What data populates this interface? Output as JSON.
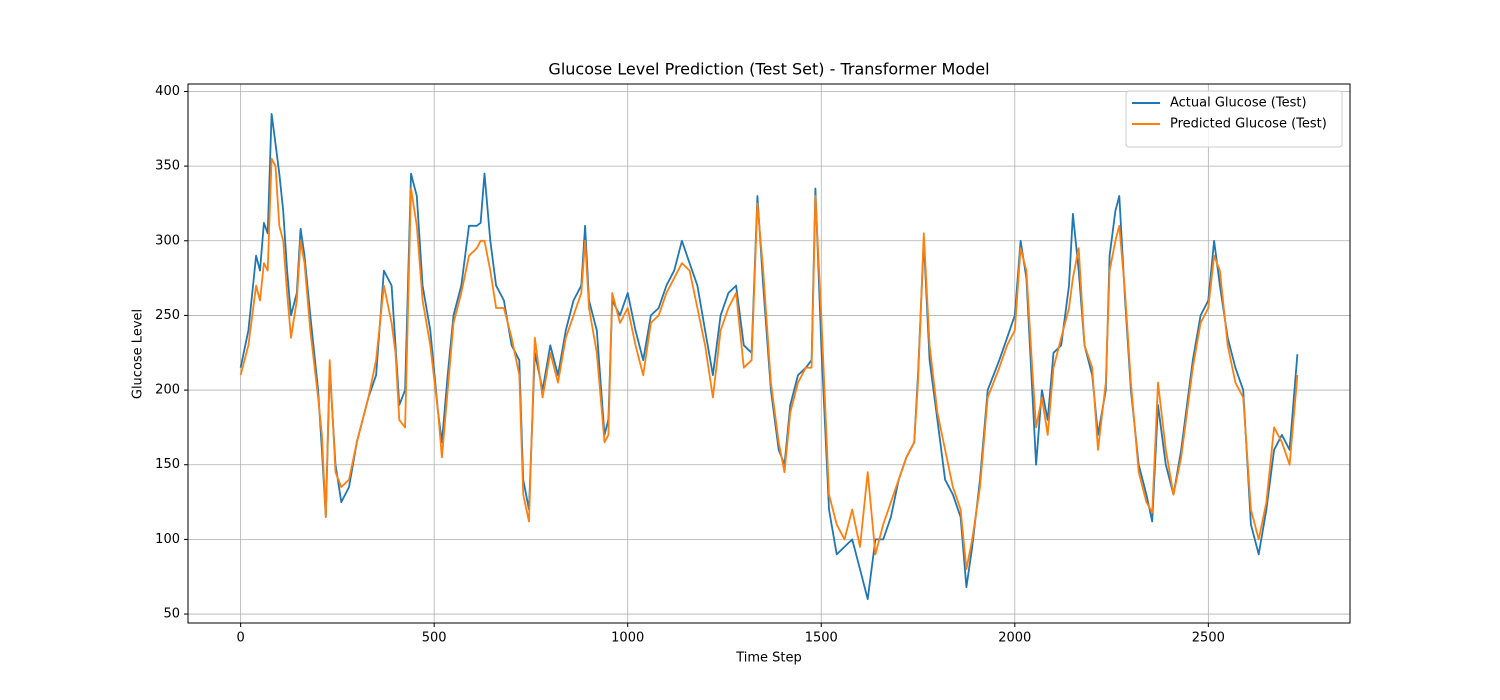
{
  "chart_data": {
    "type": "line",
    "title": "Glucose Level Prediction (Test Set) - Transformer Model",
    "x_label": "Time Step",
    "y_label": "Glucose Level",
    "x": [
      0,
      20,
      40,
      50,
      60,
      70,
      80,
      90,
      100,
      110,
      120,
      130,
      145,
      155,
      165,
      180,
      200,
      210,
      220,
      230,
      245,
      260,
      280,
      300,
      330,
      350,
      370,
      390,
      400,
      410,
      425,
      440,
      455,
      470,
      490,
      510,
      520,
      535,
      550,
      570,
      590,
      610,
      620,
      630,
      645,
      660,
      680,
      700,
      720,
      730,
      745,
      760,
      780,
      800,
      820,
      840,
      860,
      880,
      890,
      900,
      920,
      940,
      950,
      960,
      980,
      1000,
      1020,
      1040,
      1060,
      1080,
      1100,
      1120,
      1140,
      1160,
      1180,
      1200,
      1220,
      1240,
      1260,
      1280,
      1300,
      1320,
      1335,
      1350,
      1370,
      1390,
      1405,
      1420,
      1440,
      1460,
      1475,
      1485,
      1500,
      1520,
      1540,
      1560,
      1580,
      1600,
      1620,
      1640,
      1660,
      1680,
      1700,
      1720,
      1740,
      1750,
      1765,
      1780,
      1800,
      1820,
      1840,
      1860,
      1875,
      1890,
      1910,
      1930,
      1960,
      1980,
      2000,
      2015,
      2030,
      2045,
      2055,
      2070,
      2085,
      2100,
      2120,
      2140,
      2150,
      2165,
      2180,
      2200,
      2215,
      2235,
      2245,
      2260,
      2270,
      2285,
      2300,
      2320,
      2340,
      2355,
      2370,
      2390,
      2410,
      2430,
      2460,
      2480,
      2500,
      2515,
      2530,
      2550,
      2570,
      2590,
      2610,
      2630,
      2650,
      2670,
      2690,
      2710,
      2730
    ],
    "series": [
      {
        "name": "Actual Glucose (Test)",
        "color": "#1f77b4",
        "values": [
          215,
          240,
          290,
          280,
          312,
          305,
          385,
          365,
          345,
          320,
          280,
          250,
          265,
          308,
          290,
          250,
          200,
          160,
          115,
          215,
          150,
          125,
          135,
          165,
          195,
          210,
          280,
          270,
          230,
          190,
          200,
          345,
          330,
          270,
          240,
          185,
          165,
          210,
          250,
          270,
          310,
          310,
          312,
          345,
          300,
          270,
          260,
          230,
          220,
          140,
          120,
          225,
          200,
          230,
          210,
          240,
          260,
          270,
          310,
          260,
          240,
          170,
          180,
          260,
          250,
          265,
          240,
          220,
          250,
          255,
          270,
          280,
          300,
          285,
          270,
          240,
          210,
          250,
          265,
          270,
          230,
          225,
          330,
          270,
          200,
          160,
          150,
          190,
          210,
          215,
          220,
          335,
          230,
          120,
          90,
          95,
          100,
          80,
          60,
          100,
          100,
          115,
          140,
          155,
          165,
          210,
          300,
          220,
          180,
          140,
          130,
          115,
          68,
          95,
          140,
          200,
          220,
          235,
          250,
          300,
          275,
          200,
          150,
          200,
          180,
          225,
          230,
          270,
          318,
          280,
          230,
          210,
          170,
          200,
          290,
          320,
          330,
          260,
          200,
          150,
          130,
          112,
          190,
          150,
          130,
          160,
          220,
          250,
          260,
          300,
          270,
          235,
          215,
          200,
          110,
          90,
          120,
          160,
          170,
          160,
          224
        ]
      },
      {
        "name": "Predicted Glucose (Test)",
        "color": "#ff7f0e",
        "values": [
          210,
          230,
          270,
          260,
          285,
          280,
          355,
          350,
          310,
          300,
          265,
          235,
          260,
          300,
          285,
          240,
          195,
          170,
          115,
          220,
          145,
          135,
          140,
          165,
          195,
          220,
          270,
          245,
          225,
          180,
          175,
          335,
          310,
          260,
          230,
          185,
          155,
          200,
          245,
          265,
          290,
          295,
          300,
          300,
          280,
          255,
          255,
          235,
          210,
          130,
          112,
          235,
          195,
          225,
          205,
          235,
          250,
          265,
          300,
          255,
          225,
          165,
          170,
          265,
          245,
          255,
          230,
          210,
          245,
          250,
          265,
          275,
          285,
          280,
          255,
          230,
          195,
          240,
          255,
          265,
          215,
          220,
          325,
          280,
          205,
          165,
          145,
          185,
          205,
          215,
          215,
          330,
          250,
          130,
          110,
          100,
          120,
          95,
          145,
          90,
          110,
          125,
          140,
          155,
          165,
          205,
          305,
          230,
          185,
          160,
          135,
          120,
          80,
          100,
          135,
          195,
          215,
          230,
          240,
          295,
          280,
          215,
          175,
          195,
          170,
          215,
          235,
          255,
          275,
          295,
          230,
          215,
          160,
          205,
          280,
          300,
          310,
          265,
          205,
          145,
          125,
          118,
          205,
          160,
          130,
          155,
          215,
          245,
          255,
          290,
          280,
          230,
          205,
          195,
          120,
          100,
          125,
          175,
          165,
          150,
          210
        ]
      }
    ],
    "xlim": [
      -136,
      2866
    ],
    "ylim": [
      44,
      405
    ],
    "xticks": [
      0,
      500,
      1000,
      1500,
      2000,
      2500
    ],
    "yticks": [
      50,
      100,
      150,
      200,
      250,
      300,
      350,
      400
    ],
    "grid": true,
    "legend": "upper-right"
  }
}
